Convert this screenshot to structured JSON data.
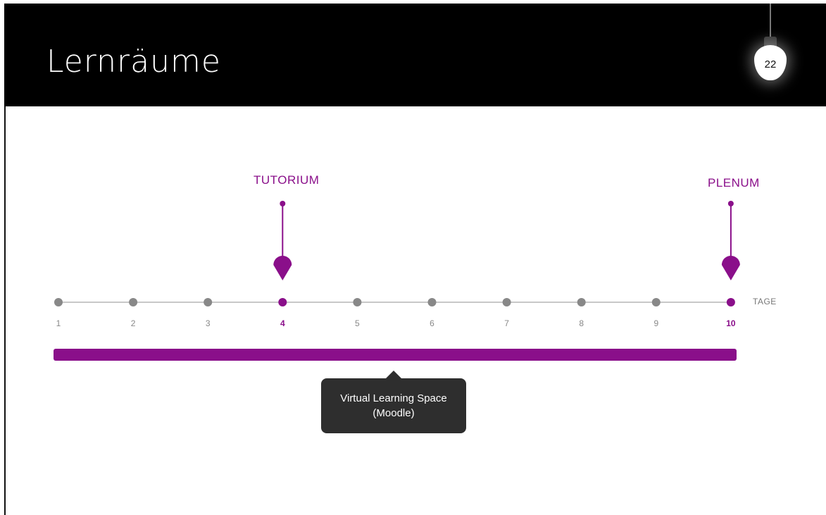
{
  "slide": {
    "title": "Lernräume",
    "page_number": "22"
  },
  "timeline": {
    "axis_label": "TAGE",
    "days": [
      "1",
      "2",
      "3",
      "4",
      "5",
      "6",
      "7",
      "8",
      "9",
      "10"
    ],
    "highlighted_days": [
      "4",
      "10"
    ],
    "markers": [
      {
        "day": "4",
        "label": "TUTORIUM"
      },
      {
        "day": "10",
        "label": "PLENUM"
      }
    ],
    "span_bar": {
      "from_day": "1",
      "to_day": "10"
    },
    "tooltip_lines": [
      "Virtual Learning Space",
      "(Moodle)"
    ]
  },
  "colors": {
    "accent": "#8a0f8a",
    "dot_inactive": "#888888",
    "line": "#c8c8c8",
    "header_bg": "#000000",
    "tooltip_bg": "#2e2e2e"
  }
}
